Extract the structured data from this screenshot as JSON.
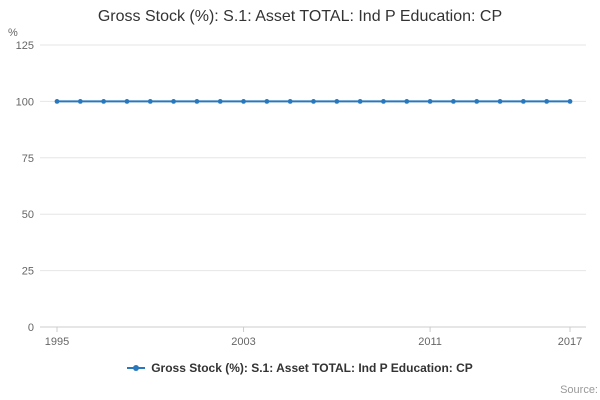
{
  "header": {
    "title": "Gross Stock (%): S.1: Asset TOTAL: Ind P Education: CP"
  },
  "legend": {
    "label": "Gross Stock (%): S.1: Asset TOTAL: Ind P Education: CP"
  },
  "source_label": "Source:",
  "colors": {
    "accent": "#2878BE",
    "grid": "#e6e6e6",
    "axis": "#cccccc",
    "tick_text": "#666666"
  },
  "chart_data": {
    "type": "line",
    "title": "Gross Stock (%): S.1: Asset TOTAL: Ind P Education: CP",
    "xlabel": "",
    "ylabel": "%",
    "ylim": [
      0,
      125
    ],
    "yticks": [
      0,
      25,
      50,
      75,
      100,
      125
    ],
    "xticks": [
      1995,
      2003,
      2011,
      2017
    ],
    "grid": "horizontal",
    "legend_position": "bottom",
    "x": [
      1995,
      1996,
      1997,
      1998,
      1999,
      2000,
      2001,
      2002,
      2003,
      2004,
      2005,
      2006,
      2007,
      2008,
      2009,
      2010,
      2011,
      2012,
      2013,
      2014,
      2015,
      2016,
      2017
    ],
    "series": [
      {
        "name": "Gross Stock (%): S.1: Asset TOTAL: Ind P Education: CP",
        "values": [
          100,
          100,
          100,
          100,
          100,
          100,
          100,
          100,
          100,
          100,
          100,
          100,
          100,
          100,
          100,
          100,
          100,
          100,
          100,
          100,
          100,
          100,
          100
        ]
      }
    ]
  }
}
